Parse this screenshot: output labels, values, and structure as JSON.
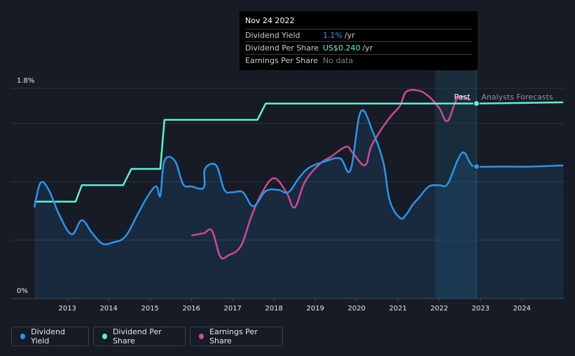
{
  "tooltip": {
    "date": "Nov 24 2022",
    "rows": [
      {
        "label": "Dividend Yield",
        "value": "1.1%",
        "unit": "/yr",
        "color": "#2b95e8"
      },
      {
        "label": "Dividend Per Share",
        "value": "US$0.240",
        "unit": "/yr",
        "color": "#5ff0cf"
      },
      {
        "label": "Earnings Per Share",
        "value": "No data",
        "unit": "",
        "color": "#7b7f88"
      }
    ]
  },
  "legend": [
    {
      "label": "Dividend Yield",
      "color": "#2b95e8"
    },
    {
      "label": "Dividend Per Share",
      "color": "#5ff0cf"
    },
    {
      "label": "Earnings Per Share",
      "color": "#cc4b92"
    }
  ],
  "regions": {
    "past": "Past",
    "forecast": "Analysts Forecasts"
  },
  "chart_data": {
    "type": "line",
    "x_ticks": [
      "2013",
      "2014",
      "2015",
      "2016",
      "2017",
      "2018",
      "2019",
      "2020",
      "2021",
      "2022",
      "2023",
      "2024"
    ],
    "y_tick_labels": [
      "1.8%",
      "0%"
    ],
    "ylim": [
      0,
      1.8
    ],
    "xlim": [
      2012.2,
      2025.0
    ],
    "highlight_start": 2021.9,
    "now": 2022.9,
    "series": [
      {
        "name": "Dividend Yield",
        "color": "#2b95e8",
        "points": [
          [
            2012.2,
            0.78
          ],
          [
            2012.35,
            0.99
          ],
          [
            2012.55,
            0.93
          ],
          [
            2012.8,
            0.72
          ],
          [
            2013.1,
            0.55
          ],
          [
            2013.35,
            0.67
          ],
          [
            2013.6,
            0.56
          ],
          [
            2013.85,
            0.47
          ],
          [
            2014.1,
            0.48
          ],
          [
            2014.4,
            0.53
          ],
          [
            2014.7,
            0.72
          ],
          [
            2014.95,
            0.88
          ],
          [
            2015.15,
            0.96
          ],
          [
            2015.25,
            0.88
          ],
          [
            2015.35,
            1.18
          ],
          [
            2015.6,
            1.18
          ],
          [
            2015.8,
            0.98
          ],
          [
            2016.0,
            0.96
          ],
          [
            2016.3,
            0.95
          ],
          [
            2016.33,
            1.11
          ],
          [
            2016.6,
            1.14
          ],
          [
            2016.8,
            0.93
          ],
          [
            2017.0,
            0.91
          ],
          [
            2017.25,
            0.91
          ],
          [
            2017.5,
            0.79
          ],
          [
            2017.8,
            0.92
          ],
          [
            2018.1,
            0.93
          ],
          [
            2018.35,
            0.91
          ],
          [
            2018.6,
            1.03
          ],
          [
            2018.85,
            1.12
          ],
          [
            2019.2,
            1.17
          ],
          [
            2019.6,
            1.2
          ],
          [
            2019.85,
            1.1
          ],
          [
            2020.1,
            1.6
          ],
          [
            2020.4,
            1.42
          ],
          [
            2020.65,
            1.16
          ],
          [
            2020.8,
            0.84
          ],
          [
            2021.05,
            0.69
          ],
          [
            2021.2,
            0.72
          ],
          [
            2021.35,
            0.8
          ],
          [
            2021.5,
            0.86
          ],
          [
            2021.75,
            0.96
          ],
          [
            2022.0,
            0.97
          ],
          [
            2022.2,
            0.98
          ],
          [
            2022.45,
            1.19
          ],
          [
            2022.6,
            1.25
          ],
          [
            2022.75,
            1.16
          ],
          [
            2022.9,
            1.13
          ],
          [
            2023.5,
            1.13
          ],
          [
            2024.2,
            1.13
          ],
          [
            2025.0,
            1.14
          ]
        ]
      },
      {
        "name": "Dividend Per Share",
        "color": "#5ff0cf",
        "points": [
          [
            2012.2,
            0.83
          ],
          [
            2013.2,
            0.83
          ],
          [
            2013.35,
            0.97
          ],
          [
            2014.35,
            0.97
          ],
          [
            2014.55,
            1.11
          ],
          [
            2015.25,
            1.11
          ],
          [
            2015.35,
            1.53
          ],
          [
            2017.6,
            1.53
          ],
          [
            2017.8,
            1.67
          ],
          [
            2022.9,
            1.67
          ],
          [
            2025.0,
            1.68
          ]
        ]
      },
      {
        "name": "Earnings Per Share",
        "color": "#cc4b92",
        "points": [
          [
            2016.0,
            0.54
          ],
          [
            2016.3,
            0.56
          ],
          [
            2016.5,
            0.58
          ],
          [
            2016.7,
            0.36
          ],
          [
            2016.9,
            0.37
          ],
          [
            2017.2,
            0.45
          ],
          [
            2017.45,
            0.7
          ],
          [
            2017.7,
            0.9
          ],
          [
            2018.0,
            1.03
          ],
          [
            2018.3,
            0.91
          ],
          [
            2018.5,
            0.78
          ],
          [
            2018.75,
            1.0
          ],
          [
            2019.1,
            1.15
          ],
          [
            2019.4,
            1.22
          ],
          [
            2019.75,
            1.3
          ],
          [
            2019.9,
            1.25
          ],
          [
            2020.2,
            1.14
          ],
          [
            2020.35,
            1.3
          ],
          [
            2020.6,
            1.45
          ],
          [
            2020.85,
            1.57
          ],
          [
            2021.05,
            1.65
          ],
          [
            2021.2,
            1.77
          ],
          [
            2021.5,
            1.78
          ],
          [
            2021.75,
            1.73
          ],
          [
            2022.0,
            1.63
          ],
          [
            2022.2,
            1.52
          ],
          [
            2022.45,
            1.72
          ],
          [
            2022.75,
            1.7
          ]
        ]
      }
    ]
  }
}
